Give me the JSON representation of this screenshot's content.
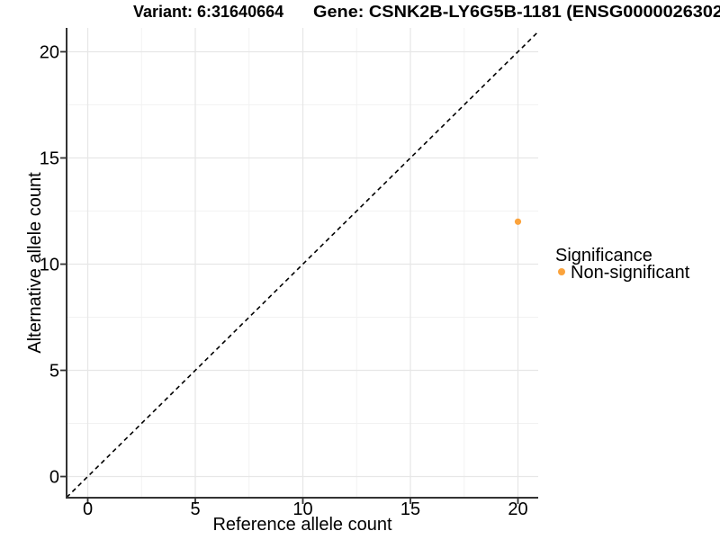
{
  "page": {
    "background": "#FFFFFF"
  },
  "header": {
    "variant_title": "Variant: 6:31640664",
    "gene_title": "Gene: CSNK2B-LY6G5B-1181 (ENSG0000026302"
  },
  "chart_data": {
    "type": "scatter",
    "xlabel": "Reference allele count",
    "ylabel": "Alternative allele count",
    "xticks": [
      0,
      5,
      10,
      15,
      20
    ],
    "yticks": [
      0,
      5,
      10,
      15,
      20
    ],
    "minor_breaks": [
      2.5,
      7.5,
      12.5,
      17.5
    ],
    "xlim": [
      -1.0,
      21.0
    ],
    "ylim": [
      -1.0,
      21.1
    ],
    "grid": "major+minor",
    "reference_line": {
      "type": "identity y=x",
      "style": "dashed",
      "color": "#000000"
    },
    "points": [
      {
        "x": 20,
        "y": 12,
        "series": "Non-significant",
        "color": "#FBA33C"
      }
    ],
    "legend": {
      "position": "right",
      "title": "Significance",
      "items": [
        {
          "label": "Non-significant",
          "color": "#FBA33C",
          "marker": "dot"
        }
      ]
    }
  },
  "colors": {
    "point_orange": "#FBA33C",
    "grid_major": "#E7E7E7",
    "grid_minor": "#F2F2F2",
    "axis": "#333333",
    "text": "#000000",
    "reference_line": "#000000"
  }
}
